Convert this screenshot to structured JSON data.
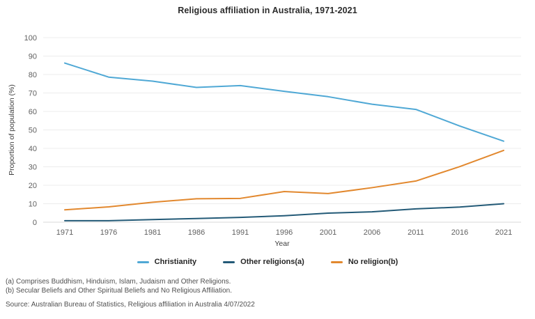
{
  "title": "Religious affiliation in Australia, 1971-2021",
  "chart_data": {
    "type": "line",
    "categories": [
      "1971",
      "1976",
      "1981",
      "1986",
      "1991",
      "1996",
      "2001",
      "2006",
      "2011",
      "2016",
      "2021"
    ],
    "series": [
      {
        "name": "Christianity",
        "color": "#4fa8d5",
        "values": [
          86.2,
          78.6,
          76.4,
          73.0,
          74.0,
          70.9,
          68.0,
          63.9,
          61.1,
          52.1,
          43.9
        ]
      },
      {
        "name": "Other religions(a)",
        "color": "#235a77",
        "values": [
          0.8,
          0.8,
          1.4,
          2.0,
          2.6,
          3.5,
          4.9,
          5.6,
          7.2,
          8.2,
          10.0
        ]
      },
      {
        "name": "No religion(b)",
        "color": "#e2882e",
        "values": [
          6.7,
          8.3,
          10.8,
          12.7,
          12.9,
          16.6,
          15.5,
          18.7,
          22.3,
          30.1,
          38.9
        ]
      }
    ],
    "xlabel": "Year",
    "ylabel": "Proportion of population (%)",
    "ylim": [
      0,
      100
    ],
    "ytick_step": 10,
    "grid": true,
    "legend_position": "bottom",
    "gridline_color": "#ececec",
    "axis_line_color": "#d9d9d9"
  },
  "footnotes": [
    "(a) Comprises Buddhism, Hinduism, Islam, Judaism and Other Religions.",
    "(b) Secular Beliefs and Other Spiritual Beliefs and No Religious Affiliation."
  ],
  "source": "Source: Australian Bureau of Statistics, Religious affiliation in Australia 4/07/2022"
}
